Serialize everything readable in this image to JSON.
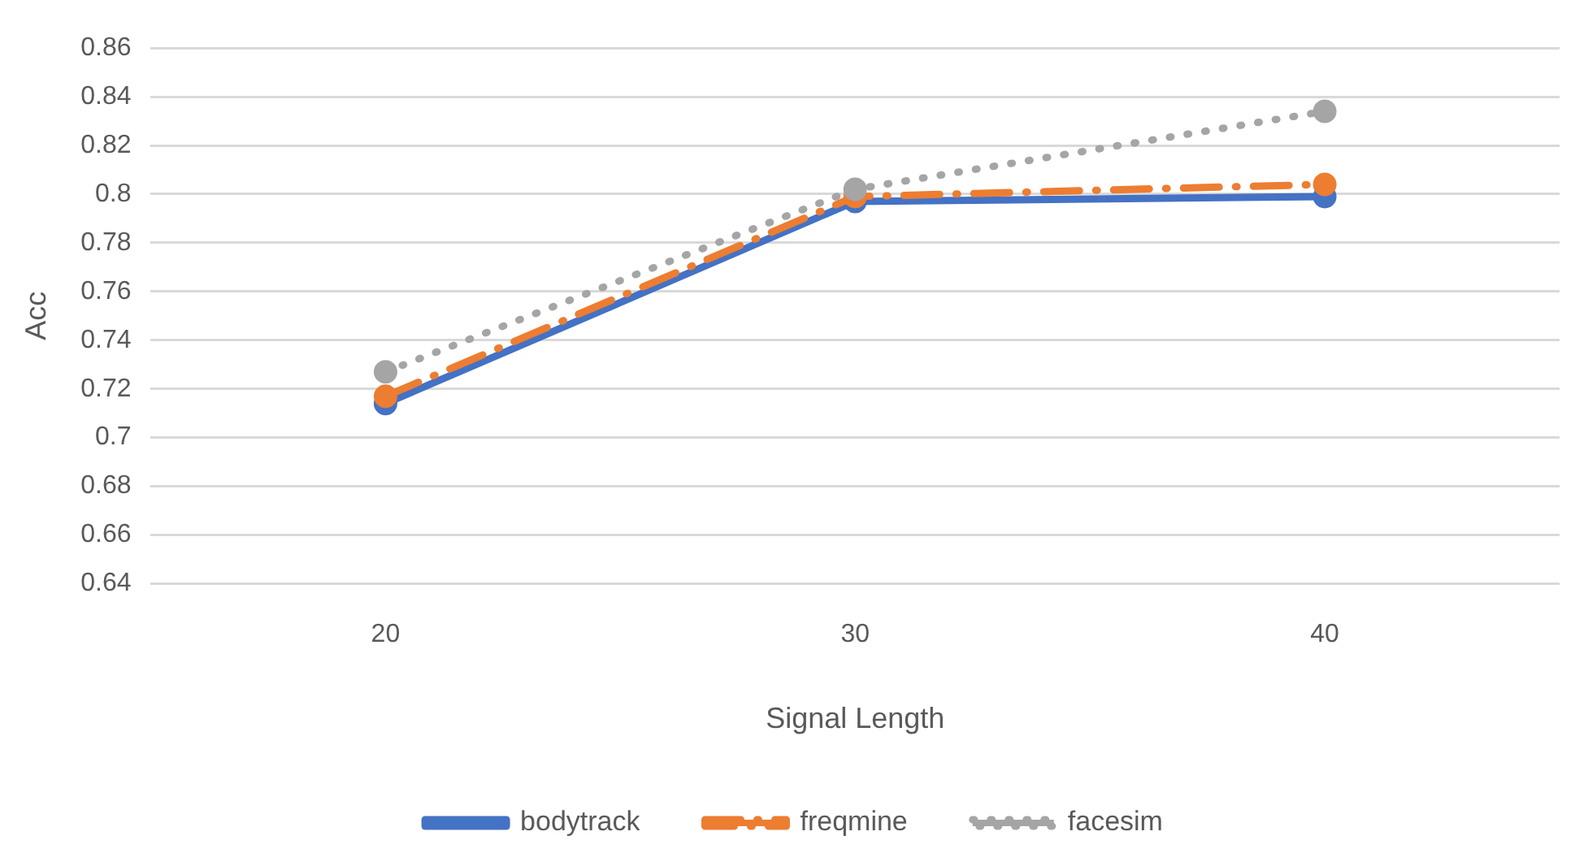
{
  "chart_data": {
    "type": "line",
    "xlabel": "Signal Length",
    "ylabel": "Acc",
    "categories": [
      "20",
      "30",
      "40"
    ],
    "series": [
      {
        "name": "bodytrack",
        "color": "#4472c4",
        "values": [
          0.714,
          0.797,
          0.799
        ],
        "line_style": "solid"
      },
      {
        "name": "freqmine",
        "color": "#ed7d31",
        "values": [
          0.717,
          0.799,
          0.804
        ],
        "line_style": "dashdot"
      },
      {
        "name": "facesim",
        "color": "#a5a5a5",
        "values": [
          0.727,
          0.802,
          0.834
        ],
        "line_style": "dotted"
      }
    ],
    "ylim": [
      0.64,
      0.86
    ],
    "yticks": [
      0.64,
      0.66,
      0.68,
      0.7,
      0.72,
      0.74,
      0.76,
      0.78,
      0.8,
      0.82,
      0.84,
      0.86
    ],
    "grid": "y",
    "legend": "bottom",
    "marker": "circle"
  }
}
